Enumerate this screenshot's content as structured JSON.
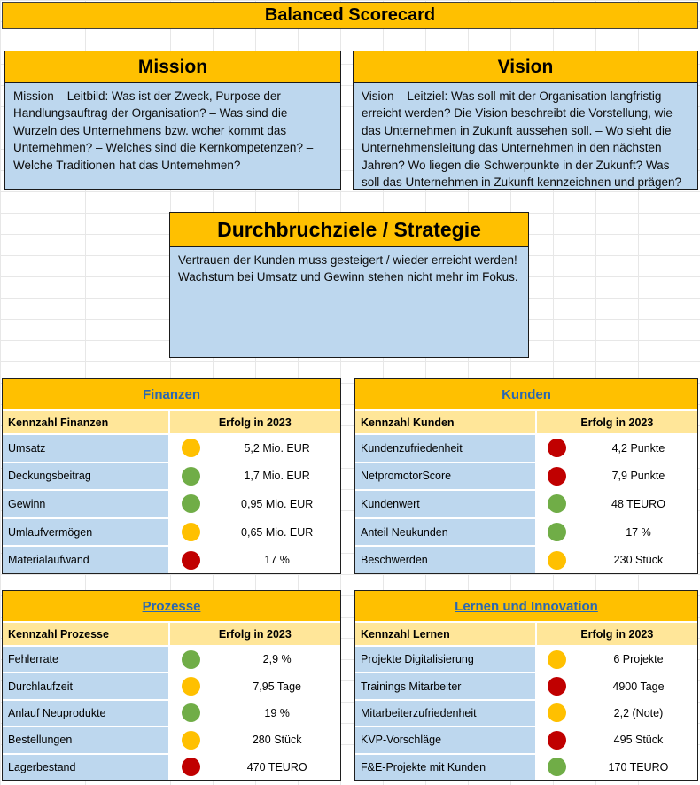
{
  "title": "Balanced Scorecard",
  "mission": {
    "header": "Mission",
    "body": "Mission – Leitbild: Was ist der Zweck, Purpose der Handlungsauftrag der Organisation? – Was sind die Wurzeln des Unternehmens bzw. woher kommt das Unternehmen? – Welches sind die Kernkompetenzen? – Welche Traditionen hat das Unternehmen?"
  },
  "vision": {
    "header": "Vision",
    "body": "Vision – Leitziel: Was soll mit der Organisation langfristig erreicht werden? Die Vision beschreibt die Vorstellung, wie das Unternehmen in Zukunft aussehen soll. – Wo sieht die Unternehmensleitung das Unternehmen in den nächsten Jahren? Wo liegen die Schwerpunkte in der Zukunft? Was soll das Unternehmen in Zukunft kennzeichnen und prägen?"
  },
  "strategy": {
    "header": "Durchbruchziele / Strategie",
    "body": "Vertrauen der Kunden muss gesteigert / wieder erreicht werden!\nWachstum bei Umsatz und Gewinn stehen nicht mehr im Fokus."
  },
  "scorecards": [
    {
      "title": "Finanzen",
      "col1": "Kennzahl Finanzen",
      "col2": "Erfolg in 2023",
      "rows": [
        {
          "label": "Umsatz",
          "status": "yellow",
          "value": "5,2 Mio. EUR"
        },
        {
          "label": "Deckungsbeitrag",
          "status": "green",
          "value": "1,7 Mio. EUR"
        },
        {
          "label": "Gewinn",
          "status": "green",
          "value": "0,95 Mio. EUR"
        },
        {
          "label": "Umlaufvermögen",
          "status": "yellow",
          "value": "0,65 Mio. EUR"
        },
        {
          "label": "Materialaufwand",
          "status": "red",
          "value": "17 %"
        }
      ]
    },
    {
      "title": "Kunden",
      "col1": "Kennzahl Kunden",
      "col2": "Erfolg in 2023",
      "rows": [
        {
          "label": "Kundenzufriedenheit",
          "status": "red",
          "value": "4,2 Punkte"
        },
        {
          "label": "NetpromotorScore",
          "status": "red",
          "value": "7,9 Punkte"
        },
        {
          "label": "Kundenwert",
          "status": "green",
          "value": "48 TEURO"
        },
        {
          "label": "Anteil Neukunden",
          "status": "green",
          "value": "17 %"
        },
        {
          "label": "Beschwerden",
          "status": "yellow",
          "value": "230 Stück"
        }
      ]
    },
    {
      "title": "Prozesse",
      "col1": "Kennzahl Prozesse",
      "col2": "Erfolg in 2023",
      "rows": [
        {
          "label": "Fehlerrate",
          "status": "green",
          "value": "2,9 %"
        },
        {
          "label": "Durchlaufzeit",
          "status": "yellow",
          "value": "7,95 Tage"
        },
        {
          "label": "Anlauf Neuprodukte",
          "status": "green",
          "value": "19 %"
        },
        {
          "label": "Bestellungen",
          "status": "yellow",
          "value": "280 Stück"
        },
        {
          "label": "Lagerbestand",
          "status": "red",
          "value": "470 TEURO"
        }
      ]
    },
    {
      "title": "Lernen und Innovation",
      "col1": "Kennzahl Lernen",
      "col2": "Erfolg in 2023",
      "rows": [
        {
          "label": "Projekte Digitalisierung",
          "status": "yellow",
          "value": "6 Projekte"
        },
        {
          "label": "Trainings Mitarbeiter",
          "status": "red",
          "value": "4900 Tage"
        },
        {
          "label": "Mitarbeiterzufriedenheit",
          "status": "yellow",
          "value": "2,2 (Note)"
        },
        {
          "label": "KVP-Vorschläge",
          "status": "red",
          "value": "495 Stück"
        },
        {
          "label": "F&E-Projekte mit Kunden",
          "status": "green",
          "value": "170 TEURO"
        }
      ]
    }
  ],
  "colors": {
    "gold": "#FFC000",
    "cream": "#FFE699",
    "blue_row": "#BDD7EE",
    "green": "#70AD47",
    "yellow": "#FFC000",
    "red": "#C00000",
    "link": "#2A67B1"
  }
}
